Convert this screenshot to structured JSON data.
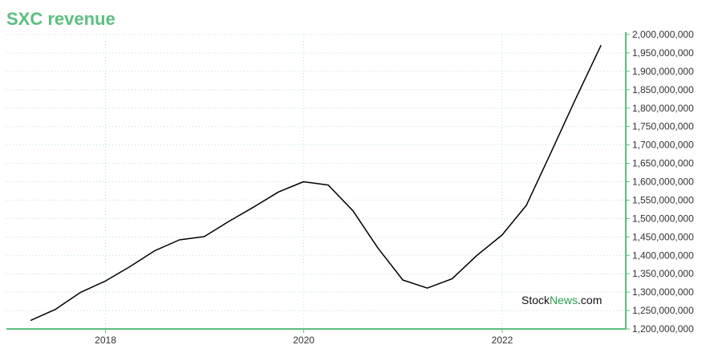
{
  "colors": {
    "accent": "#5bbf7f",
    "line": "#000000",
    "grid": "#b9e3cb",
    "watermark_green": "#2e9e4f",
    "watermark_dark": "#111111"
  },
  "watermark": {
    "part1": "Stock",
    "part2": "News",
    "part3": ".com"
  },
  "chart_data": {
    "type": "line",
    "title": "SXC revenue",
    "xlabel": "",
    "ylabel": "",
    "x_ticks": [
      "2018",
      "2020",
      "2022"
    ],
    "y_ticks": [
      "1,200,000,000",
      "1,250,000,000",
      "1,300,000,000",
      "1,350,000,000",
      "1,400,000,000",
      "1,450,000,000",
      "1,500,000,000",
      "1,550,000,000",
      "1,600,000,000",
      "1,650,000,000",
      "1,700,000,000",
      "1,750,000,000",
      "1,800,000,000",
      "1,850,000,000",
      "1,900,000,000",
      "1,950,000,000",
      "2,000,000,000"
    ],
    "ylim": [
      1200000000,
      2000000000
    ],
    "xlim": [
      "2017-01-01",
      "2023-04-01"
    ],
    "grid": true,
    "series": [
      {
        "x": [
          "2017-03-31",
          "2017-06-30",
          "2017-09-30",
          "2017-12-31",
          "2018-03-31",
          "2018-06-30",
          "2018-09-30",
          "2018-12-31",
          "2019-03-31",
          "2019-06-30",
          "2019-09-30",
          "2019-12-31",
          "2020-03-31",
          "2020-06-30",
          "2020-09-30",
          "2020-12-31",
          "2021-03-31",
          "2021-06-30",
          "2021-09-30",
          "2021-12-31",
          "2022-03-31",
          "2022-06-30",
          "2022-09-30",
          "2022-12-31"
        ],
        "values": [
          1223000000,
          1253000000,
          1299000000,
          1330000000,
          1369000000,
          1412000000,
          1442000000,
          1451000000,
          1492000000,
          1531000000,
          1572000000,
          1600000000,
          1591000000,
          1521000000,
          1420000000,
          1333000000,
          1311000000,
          1336000000,
          1400000000,
          1455000000,
          1536000000,
          1680000000,
          1828000000,
          1971000000
        ]
      }
    ]
  }
}
